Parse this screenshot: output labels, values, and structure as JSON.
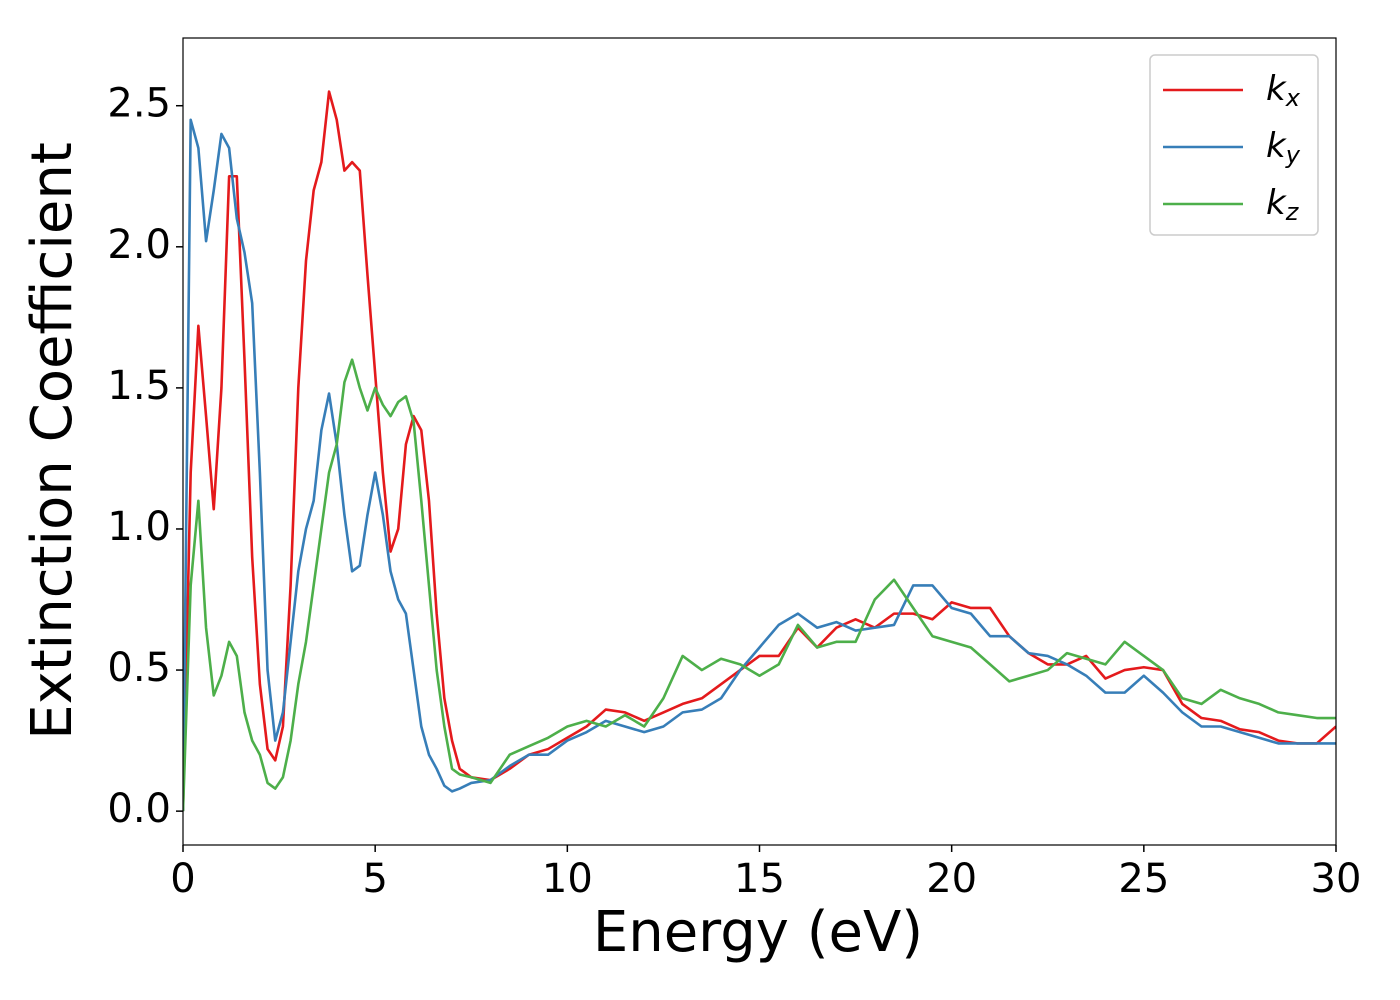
{
  "chart_data": {
    "type": "line",
    "xlabel": "Energy (eV)",
    "ylabel": "Extinction Coefficient",
    "x": [
      0,
      0.2,
      0.4,
      0.6,
      0.8,
      1.0,
      1.2,
      1.4,
      1.6,
      1.8,
      2.0,
      2.2,
      2.4,
      2.6,
      2.8,
      3.0,
      3.2,
      3.4,
      3.6,
      3.8,
      4.0,
      4.2,
      4.4,
      4.6,
      4.8,
      5.0,
      5.2,
      5.4,
      5.6,
      5.8,
      6.0,
      6.2,
      6.4,
      6.6,
      6.8,
      7.0,
      7.2,
      7.5,
      8,
      8.5,
      9,
      9.5,
      10,
      10.5,
      11,
      11.5,
      12,
      12.5,
      13,
      13.5,
      14,
      14.5,
      15,
      15.5,
      16,
      16.5,
      17,
      17.5,
      18,
      18.5,
      19,
      19.5,
      20,
      20.5,
      21,
      21.5,
      22,
      22.5,
      23,
      23.5,
      24,
      24.5,
      25,
      25.5,
      26,
      26.5,
      27,
      27.5,
      28,
      28.5,
      29,
      29.5,
      30
    ],
    "series": [
      {
        "name": "kx",
        "color": "#e41a1c",
        "values": [
          0,
          1.2,
          1.72,
          1.4,
          1.07,
          1.5,
          2.25,
          2.25,
          1.6,
          0.9,
          0.45,
          0.22,
          0.18,
          0.3,
          0.8,
          1.5,
          1.95,
          2.2,
          2.3,
          2.55,
          2.45,
          2.27,
          2.3,
          2.27,
          1.9,
          1.55,
          1.2,
          0.92,
          1.0,
          1.3,
          1.4,
          1.35,
          1.1,
          0.7,
          0.4,
          0.25,
          0.15,
          0.12,
          0.11,
          0.15,
          0.2,
          0.22,
          0.26,
          0.3,
          0.36,
          0.35,
          0.32,
          0.35,
          0.38,
          0.4,
          0.45,
          0.5,
          0.55,
          0.55,
          0.65,
          0.58,
          0.65,
          0.68,
          0.65,
          0.7,
          0.7,
          0.68,
          0.74,
          0.72,
          0.72,
          0.62,
          0.56,
          0.52,
          0.52,
          0.55,
          0.47,
          0.5,
          0.51,
          0.5,
          0.38,
          0.33,
          0.32,
          0.29,
          0.28,
          0.25,
          0.24,
          0.24,
          0.3
        ]
      },
      {
        "name": "ky",
        "color": "#377eb8",
        "values": [
          0,
          2.45,
          2.35,
          2.02,
          2.2,
          2.4,
          2.35,
          2.1,
          1.98,
          1.8,
          1.2,
          0.5,
          0.25,
          0.35,
          0.6,
          0.85,
          1.0,
          1.1,
          1.35,
          1.48,
          1.3,
          1.05,
          0.85,
          0.87,
          1.05,
          1.2,
          1.05,
          0.85,
          0.75,
          0.7,
          0.5,
          0.3,
          0.2,
          0.15,
          0.09,
          0.07,
          0.08,
          0.1,
          0.11,
          0.16,
          0.2,
          0.2,
          0.25,
          0.28,
          0.32,
          0.3,
          0.28,
          0.3,
          0.35,
          0.36,
          0.4,
          0.5,
          0.58,
          0.66,
          0.7,
          0.65,
          0.67,
          0.64,
          0.65,
          0.66,
          0.8,
          0.8,
          0.72,
          0.7,
          0.62,
          0.62,
          0.56,
          0.55,
          0.52,
          0.48,
          0.42,
          0.42,
          0.48,
          0.42,
          0.35,
          0.3,
          0.3,
          0.28,
          0.26,
          0.24,
          0.24,
          0.24,
          0.24
        ]
      },
      {
        "name": "kz",
        "color": "#4daf4a",
        "values": [
          0,
          0.8,
          1.1,
          0.65,
          0.41,
          0.48,
          0.6,
          0.55,
          0.35,
          0.25,
          0.2,
          0.1,
          0.08,
          0.12,
          0.25,
          0.45,
          0.6,
          0.8,
          1.0,
          1.2,
          1.3,
          1.52,
          1.6,
          1.5,
          1.42,
          1.5,
          1.44,
          1.4,
          1.45,
          1.47,
          1.38,
          1.1,
          0.8,
          0.5,
          0.3,
          0.15,
          0.13,
          0.12,
          0.1,
          0.2,
          0.23,
          0.26,
          0.3,
          0.32,
          0.3,
          0.34,
          0.3,
          0.4,
          0.55,
          0.5,
          0.54,
          0.52,
          0.48,
          0.52,
          0.66,
          0.58,
          0.6,
          0.6,
          0.75,
          0.82,
          0.72,
          0.62,
          0.6,
          0.58,
          0.52,
          0.46,
          0.48,
          0.5,
          0.56,
          0.54,
          0.52,
          0.6,
          0.55,
          0.5,
          0.4,
          0.38,
          0.43,
          0.4,
          0.38,
          0.35,
          0.34,
          0.33,
          0.33
        ]
      }
    ],
    "xlim": [
      0,
      30
    ],
    "xticks": [
      0,
      5,
      10,
      15,
      20,
      25,
      30
    ],
    "ylim": [
      -0.12,
      2.74
    ],
    "yticks": [
      {
        "value": 0,
        "label": "0.0"
      },
      0.5,
      {
        "value": 1,
        "label": "1.0"
      },
      1.5,
      {
        "value": 2,
        "label": "2.0"
      },
      2.5
    ],
    "legend": "upper right",
    "grid": false
  }
}
